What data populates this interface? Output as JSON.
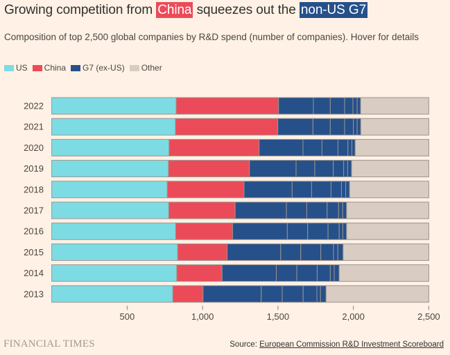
{
  "header": {
    "title_parts": [
      "Growing competition from ",
      "China",
      " squeezes out the ",
      "non-US G7"
    ],
    "subtitle": "Composition of top 2,500 global companies by R&D spend (number of companies). Hover for details"
  },
  "legend": [
    {
      "label": "US",
      "color": "#7DDCE3"
    },
    {
      "label": "China",
      "color": "#EB4B58"
    },
    {
      "label": "G7 (ex-US)",
      "color": "#26508A"
    },
    {
      "label": "Other",
      "color": "#D9CCC2"
    }
  ],
  "footer": {
    "brand": "FINANCIAL TIMES",
    "source_prefix": "Source: ",
    "source_link": "European Commission R&D Investment Scoreboard"
  },
  "chart_data": {
    "type": "bar",
    "orientation": "horizontal",
    "stacked": true,
    "title": "Growing competition from China squeezes out the non-US G7",
    "subtitle": "Composition of top 2,500 global companies by R&D spend (number of companies). Hover for details",
    "xlabel": "",
    "ylabel": "",
    "xlim": [
      0,
      2500
    ],
    "xticks": [
      500,
      1000,
      1500,
      2000,
      2500
    ],
    "xtick_labels": [
      "500",
      "1,000",
      "1,500",
      "2,000",
      "2,500"
    ],
    "legend_position": "top-left",
    "grid": false,
    "categories": [
      "2022",
      "2021",
      "2020",
      "2019",
      "2018",
      "2017",
      "2016",
      "2015",
      "2014",
      "2013"
    ],
    "series": [
      {
        "name": "US",
        "color": "#7DDCE3",
        "values": [
          825,
          820,
          778,
          774,
          766,
          776,
          822,
          835,
          829,
          803
        ]
      },
      {
        "name": "China",
        "color": "#EB4B58",
        "values": [
          679,
          679,
          597,
          537,
          509,
          440,
          377,
          328,
          300,
          200
        ]
      },
      {
        "name": "G7 (ex-US)",
        "color": "#26508A",
        "values": [
          544,
          550,
          637,
          677,
          700,
          739,
          756,
          769,
          777,
          816
        ],
        "sub_segments": [
          [
            231,
            112,
            95,
            55,
            28,
            23
          ],
          [
            233,
            115,
            95,
            58,
            25,
            24
          ],
          [
            291,
            126,
            106,
            66,
            26,
            22
          ],
          [
            309,
            124,
            123,
            69,
            26,
            26
          ],
          [
            319,
            129,
            129,
            69,
            28,
            26
          ],
          [
            340,
            135,
            135,
            76,
            27,
            26
          ],
          [
            363,
            135,
            135,
            74,
            24,
            25
          ],
          [
            355,
            133,
            133,
            84,
            29,
            35
          ],
          [
            360,
            136,
            135,
            87,
            26,
            33
          ],
          [
            386,
            139,
            139,
            91,
            24,
            37
          ]
        ]
      },
      {
        "name": "Other",
        "color": "#D9CCC2",
        "values": [
          452,
          451,
          488,
          512,
          525,
          545,
          545,
          568,
          594,
          681
        ]
      }
    ]
  }
}
